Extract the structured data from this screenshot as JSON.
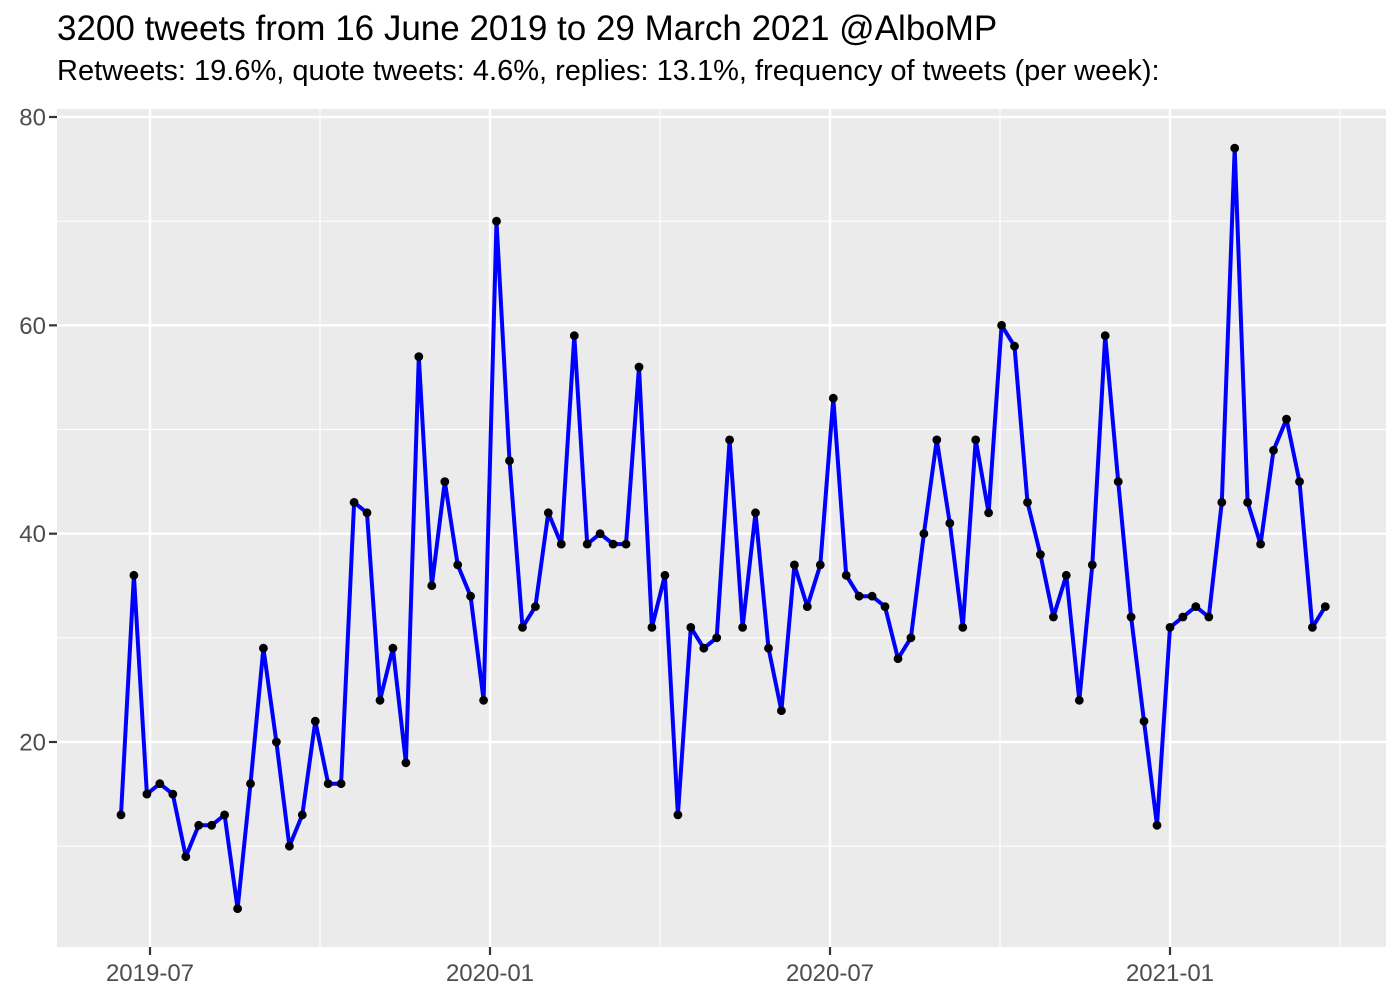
{
  "chart_data": {
    "type": "line",
    "title": "3200 tweets from 16 June 2019 to 29 March 2021 @AlboMP",
    "subtitle": "Retweets: 19.6%, quote tweets: 4.6%, replies: 13.1%, frequency of tweets (per week):",
    "x_label": "",
    "y_label": "",
    "legend": "none",
    "grid": true,
    "x_tick_labels": [
      "2019-07",
      "2020-01",
      "2020-07",
      "2021-01"
    ],
    "y_ticks": [
      20,
      40,
      60,
      80
    ],
    "y_minor_ticks": [
      10,
      30,
      50,
      70
    ],
    "ylim": [
      0,
      81
    ],
    "point_count": 94,
    "x": [
      "2019-06-16",
      "2019-06-23",
      "2019-06-30",
      "2019-07-07",
      "2019-07-14",
      "2019-07-21",
      "2019-07-28",
      "2019-08-04",
      "2019-08-11",
      "2019-08-18",
      "2019-08-25",
      "2019-09-01",
      "2019-09-08",
      "2019-09-15",
      "2019-09-22",
      "2019-09-29",
      "2019-10-06",
      "2019-10-13",
      "2019-10-20",
      "2019-10-27",
      "2019-11-03",
      "2019-11-10",
      "2019-11-17",
      "2019-11-24",
      "2019-12-01",
      "2019-12-08",
      "2019-12-15",
      "2019-12-22",
      "2019-12-29",
      "2020-01-05",
      "2020-01-12",
      "2020-01-19",
      "2020-01-26",
      "2020-02-02",
      "2020-02-09",
      "2020-02-16",
      "2020-02-23",
      "2020-03-01",
      "2020-03-08",
      "2020-03-15",
      "2020-03-22",
      "2020-03-29",
      "2020-04-05",
      "2020-04-12",
      "2020-04-19",
      "2020-04-26",
      "2020-05-03",
      "2020-05-10",
      "2020-05-17",
      "2020-05-24",
      "2020-05-31",
      "2020-06-07",
      "2020-06-14",
      "2020-06-21",
      "2020-06-28",
      "2020-07-05",
      "2020-07-12",
      "2020-07-19",
      "2020-07-26",
      "2020-08-02",
      "2020-08-09",
      "2020-08-16",
      "2020-08-23",
      "2020-08-30",
      "2020-09-06",
      "2020-09-13",
      "2020-09-20",
      "2020-09-27",
      "2020-10-04",
      "2020-10-11",
      "2020-10-18",
      "2020-10-25",
      "2020-11-01",
      "2020-11-08",
      "2020-11-15",
      "2020-11-22",
      "2020-11-29",
      "2020-12-06",
      "2020-12-13",
      "2020-12-20",
      "2020-12-27",
      "2021-01-03",
      "2021-01-10",
      "2021-01-17",
      "2021-01-24",
      "2021-01-31",
      "2021-02-07",
      "2021-02-14",
      "2021-02-21",
      "2021-02-28",
      "2021-03-07",
      "2021-03-14",
      "2021-03-21",
      "2021-03-28"
    ],
    "values": [
      13,
      36,
      15,
      16,
      15,
      9,
      12,
      12,
      13,
      4,
      16,
      29,
      20,
      10,
      13,
      22,
      16,
      16,
      43,
      42,
      24,
      29,
      18,
      57,
      35,
      45,
      37,
      34,
      24,
      70,
      47,
      31,
      33,
      42,
      39,
      59,
      39,
      40,
      39,
      39,
      56,
      31,
      36,
      13,
      31,
      29,
      30,
      49,
      31,
      42,
      29,
      23,
      37,
      33,
      37,
      53,
      36,
      34,
      34,
      33,
      28,
      30,
      40,
      49,
      41,
      31,
      49,
      42,
      60,
      58,
      43,
      38,
      32,
      36,
      24,
      37,
      59,
      45,
      32,
      22,
      12,
      31,
      32,
      33,
      32,
      43,
      77,
      43,
      39,
      48,
      51,
      45,
      31,
      33
    ],
    "colors": {
      "line": "#0000FF",
      "point": "#000000",
      "panel_background": "#EBEBEB",
      "gridline": "#FFFFFF",
      "axis_text": "#4d4d4d",
      "tick_mark": "#333333",
      "title_text": "#000000",
      "page_background": "#FFFFFF"
    }
  }
}
